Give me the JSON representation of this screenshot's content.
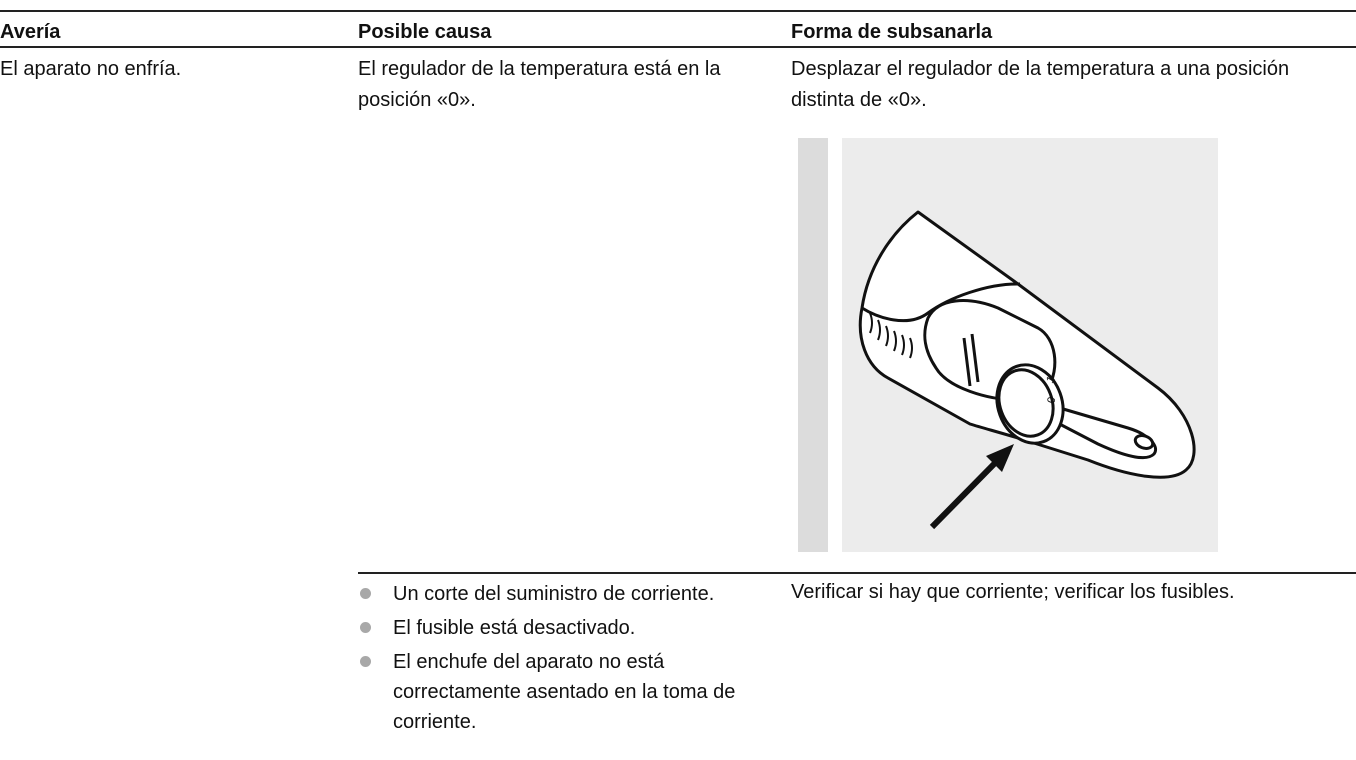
{
  "table": {
    "headers": [
      "Avería",
      "Posible causa",
      "Forma de subsanarla"
    ],
    "rows": [
      {
        "fault": "El aparato no enfría.",
        "cause": "El regulador de la temperatura está en la posición «0».",
        "remedy": "Desplazar el regulador de la temperatura a una posición distinta de «0».",
        "image": {
          "dial_labels": [
            "1",
            "0"
          ]
        }
      },
      {
        "causes": [
          "Un corte del suministro de corriente.",
          "El fusible está desactivado.",
          "El enchufe del aparato no está correctamente asentado en la toma de corriente."
        ],
        "remedy": "Verificar si hay que corriente; verificar los fusibles."
      }
    ]
  }
}
